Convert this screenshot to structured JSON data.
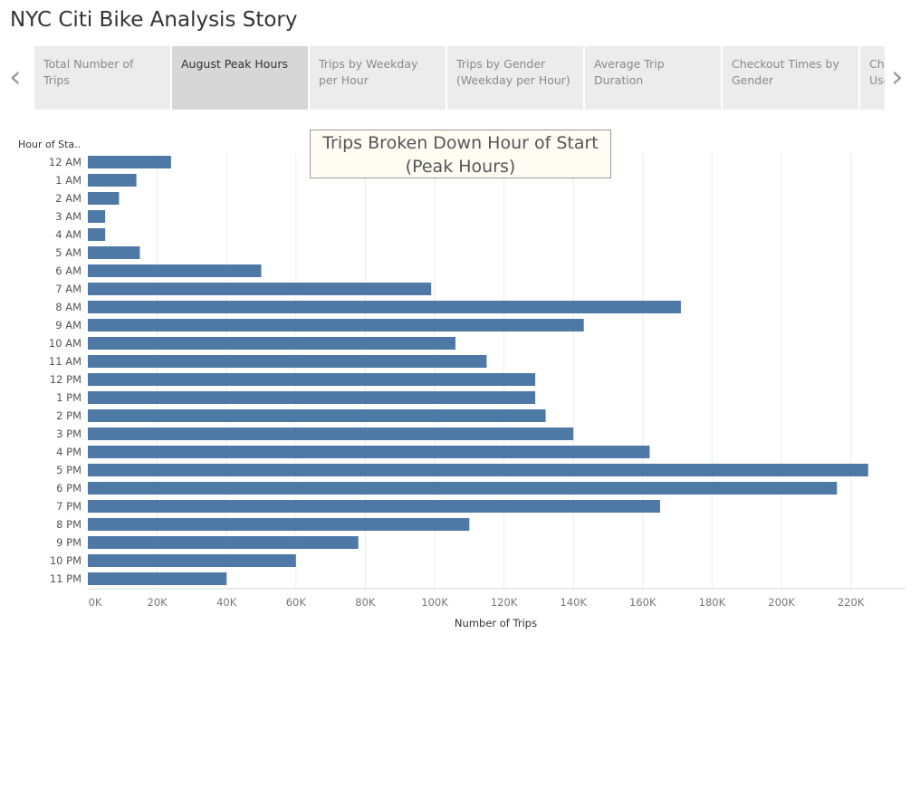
{
  "story": {
    "title": "NYC Citi Bike Analysis Story",
    "tabs": [
      {
        "label": "Total Number of Trips",
        "active": false
      },
      {
        "label": "August Peak Hours",
        "active": true
      },
      {
        "label": "Trips by Weekday per Hour",
        "active": false
      },
      {
        "label": "Trips by Gender (Weekday per Hour)",
        "active": false
      },
      {
        "label": "Average Trip Duration",
        "active": false
      },
      {
        "label": "Checkout Times by Gender",
        "active": false
      },
      {
        "label": "Checkout Times by User",
        "active": false
      }
    ]
  },
  "colors": {
    "bar": "#4e79a7",
    "tab_active": "#d7d7d7",
    "tab_inactive": "#ececec"
  },
  "chart_data": {
    "type": "bar",
    "orientation": "horizontal",
    "title": "Trips Broken Down Hour of Start (Peak Hours)",
    "title_lines": [
      "Trips Broken Down Hour of Start",
      "(Peak Hours)"
    ],
    "xlabel": "Number of Trips",
    "ylabel": "Hour of Sta..",
    "xlim": [
      0,
      235000
    ],
    "xticks": [
      0,
      20000,
      40000,
      60000,
      80000,
      100000,
      120000,
      140000,
      160000,
      180000,
      200000,
      220000
    ],
    "xtick_labels": [
      "0K",
      "20K",
      "40K",
      "60K",
      "80K",
      "100K",
      "120K",
      "140K",
      "160K",
      "180K",
      "200K",
      "220K"
    ],
    "grid": "vertical",
    "categories": [
      "12 AM",
      "1 AM",
      "2 AM",
      "3 AM",
      "4 AM",
      "5 AM",
      "6 AM",
      "7 AM",
      "8 AM",
      "9 AM",
      "10 AM",
      "11 AM",
      "12 PM",
      "1 PM",
      "2 PM",
      "3 PM",
      "4 PM",
      "5 PM",
      "6 PM",
      "7 PM",
      "8 PM",
      "9 PM",
      "10 PM",
      "11 PM"
    ],
    "values": [
      24000,
      14000,
      9000,
      5000,
      5000,
      15000,
      50000,
      99000,
      171000,
      143000,
      106000,
      115000,
      129000,
      129000,
      132000,
      140000,
      162000,
      225000,
      216000,
      165000,
      110000,
      78000,
      60000,
      40000
    ]
  }
}
